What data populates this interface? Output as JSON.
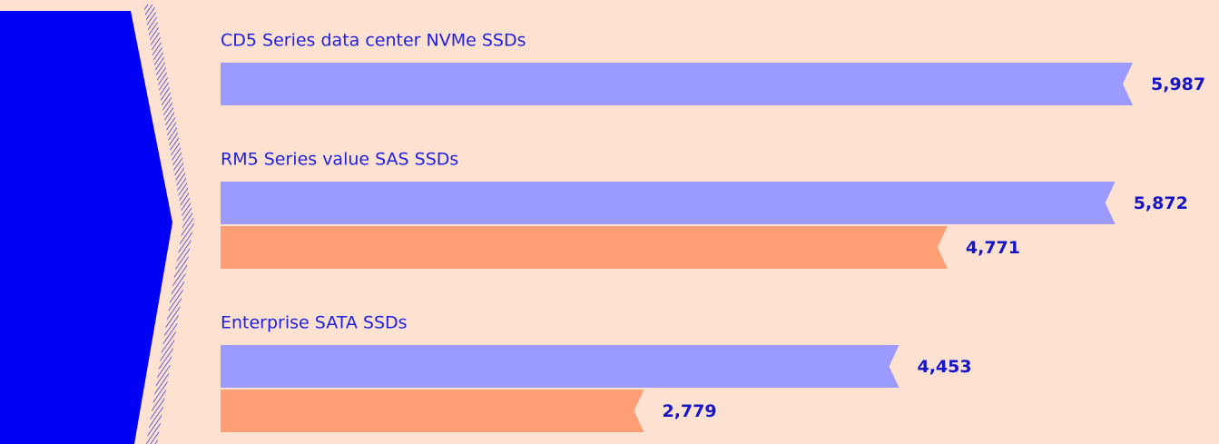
{
  "chart_data": {
    "type": "bar",
    "orientation": "horizontal",
    "categories": [
      "CD5 Series data center NVMe SSDs",
      "RM5 Series value SAS SSDs",
      "Enterprise SATA SSDs"
    ],
    "series": [
      {
        "color": "#9b9bff",
        "values": [
          5987,
          5872,
          4453
        ],
        "value_labels": [
          "5,987",
          "5,872",
          "4,453"
        ]
      },
      {
        "color": "#ff9f76",
        "values": [
          null,
          4771,
          2779
        ],
        "value_labels": [
          null,
          "4,771",
          "2,779"
        ]
      }
    ]
  }
}
